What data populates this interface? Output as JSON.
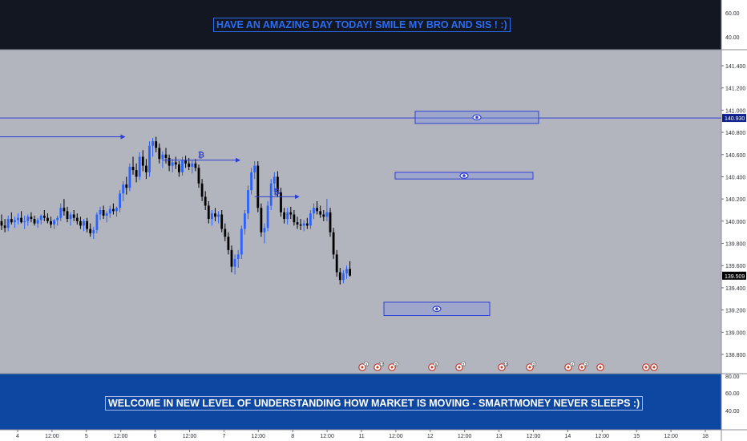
{
  "banners": {
    "top": "HAVE AN AMAZING DAY TODAY! SMILE MY BRO AND SIS ! :)",
    "bottom": "WELCOME IN NEW LEVEL OF UNDERSTANDING HOW MARKET IS MOVING - SMARTMONEY NEVER SLEEPS :)"
  },
  "colors": {
    "background": "#b2b5be",
    "top_pane": "#131722",
    "bottom_pane": "#0d47a1",
    "up_candle": "#2962ff",
    "down_candle": "#000000",
    "drawing": "#2f3fd6",
    "top_text": "#2a6cf6",
    "price_tag": "#0b1f8f"
  },
  "price_axis": {
    "ticks": [
      "141.400",
      "141.200",
      "141.000",
      "140.800",
      "140.600",
      "140.400",
      "140.200",
      "140.000",
      "139.800",
      "139.600",
      "139.400",
      "139.200",
      "139.000",
      "138.800"
    ],
    "price_tags": [
      "140.930",
      "139.509"
    ]
  },
  "top_pane_axis": [
    "60.00",
    "40.00"
  ],
  "bottom_pane_axis": [
    "80.00",
    "60.00",
    "40.00"
  ],
  "time_axis": [
    "4",
    "12:00",
    "5",
    "12:00",
    "6",
    "12:00",
    "7",
    "12:00",
    "8",
    "12:00",
    "11",
    "12:00",
    "12",
    "12:00",
    "13",
    "12:00",
    "14",
    "12:00",
    "15",
    "12:00",
    "18"
  ],
  "annotations": {
    "bitcoin_symbol": "₿",
    "zones": [
      "eye-zone-upper",
      "eye-zone-middle",
      "eye-zone-lower"
    ],
    "event_badges": [
      "2",
      "17",
      "2",
      "5",
      "2",
      "10",
      "2",
      "4",
      "3"
    ]
  },
  "chart_data": {
    "type": "candlestick",
    "price_unit": "USDJPY-style quote",
    "y_range": [
      138.7,
      141.5
    ],
    "horizontal_line": 140.93,
    "last_price": 139.509,
    "candles": [
      [
        140.0,
        140.06,
        139.92,
        139.96
      ],
      [
        139.96,
        140.02,
        139.9,
        139.94
      ],
      [
        139.94,
        140.05,
        139.91,
        140.02
      ],
      [
        140.02,
        140.08,
        139.97,
        139.99
      ],
      [
        139.99,
        140.04,
        139.94,
        140.01
      ],
      [
        140.01,
        140.07,
        139.97,
        140.03
      ],
      [
        140.03,
        140.09,
        139.98,
        139.99
      ],
      [
        139.99,
        140.05,
        139.93,
        140.0
      ],
      [
        140.0,
        140.06,
        139.96,
        140.04
      ],
      [
        140.04,
        140.08,
        139.99,
        140.02
      ],
      [
        140.02,
        140.05,
        139.96,
        139.98
      ],
      [
        139.98,
        140.03,
        139.94,
        140.01
      ],
      [
        140.01,
        140.06,
        139.97,
        140.05
      ],
      [
        140.05,
        140.1,
        140.0,
        140.03
      ],
      [
        140.03,
        140.07,
        139.98,
        140.0
      ],
      [
        140.0,
        140.04,
        139.94,
        139.97
      ],
      [
        139.97,
        140.02,
        139.93,
        140.01
      ],
      [
        140.01,
        140.05,
        139.96,
        140.03
      ],
      [
        140.03,
        140.16,
        140.0,
        140.12
      ],
      [
        140.12,
        140.2,
        140.05,
        140.09
      ],
      [
        140.09,
        140.13,
        139.99,
        140.02
      ],
      [
        140.02,
        140.08,
        139.96,
        140.06
      ],
      [
        140.06,
        140.1,
        140.0,
        140.03
      ],
      [
        140.03,
        140.07,
        139.97,
        140.0
      ],
      [
        140.0,
        140.04,
        139.93,
        139.96
      ],
      [
        139.96,
        140.02,
        139.91,
        140.0
      ],
      [
        140.0,
        140.03,
        139.9,
        139.93
      ],
      [
        139.93,
        139.98,
        139.86,
        139.89
      ],
      [
        139.89,
        139.95,
        139.84,
        139.92
      ],
      [
        139.92,
        140.08,
        139.89,
        140.06
      ],
      [
        140.06,
        140.13,
        140.01,
        140.1
      ],
      [
        140.1,
        140.14,
        140.02,
        140.05
      ],
      [
        140.05,
        140.09,
        139.99,
        140.07
      ],
      [
        140.07,
        140.14,
        140.03,
        140.11
      ],
      [
        140.11,
        140.16,
        140.06,
        140.09
      ],
      [
        140.09,
        140.13,
        140.04,
        140.12
      ],
      [
        140.12,
        140.28,
        140.08,
        140.25
      ],
      [
        140.25,
        140.36,
        140.18,
        140.33
      ],
      [
        140.33,
        140.4,
        140.24,
        140.3
      ],
      [
        140.3,
        140.52,
        140.27,
        140.49
      ],
      [
        140.49,
        140.58,
        140.42,
        140.46
      ],
      [
        140.46,
        140.52,
        140.35,
        140.4
      ],
      [
        140.4,
        140.62,
        140.37,
        140.58
      ],
      [
        140.58,
        140.64,
        140.45,
        140.5
      ],
      [
        140.5,
        140.56,
        140.38,
        140.44
      ],
      [
        140.44,
        140.72,
        140.4,
        140.68
      ],
      [
        140.68,
        140.75,
        140.58,
        140.72
      ],
      [
        140.72,
        140.76,
        140.62,
        140.66
      ],
      [
        140.66,
        140.7,
        140.52,
        140.56
      ],
      [
        140.56,
        140.63,
        140.48,
        140.6
      ],
      [
        140.6,
        140.66,
        140.52,
        140.57
      ],
      [
        140.57,
        140.6,
        140.45,
        140.5
      ],
      [
        140.5,
        140.56,
        140.44,
        140.53
      ],
      [
        140.53,
        140.58,
        140.47,
        140.51
      ],
      [
        140.51,
        140.54,
        140.4,
        140.44
      ],
      [
        140.44,
        140.58,
        140.41,
        140.55
      ],
      [
        140.55,
        140.59,
        140.48,
        140.52
      ],
      [
        140.52,
        140.57,
        140.46,
        140.49
      ],
      [
        140.49,
        140.55,
        140.43,
        140.52
      ],
      [
        140.52,
        140.56,
        140.45,
        140.48
      ],
      [
        140.48,
        140.51,
        140.3,
        140.34
      ],
      [
        140.34,
        140.38,
        140.18,
        140.22
      ],
      [
        140.22,
        140.27,
        140.1,
        140.14
      ],
      [
        140.14,
        140.18,
        139.98,
        140.02
      ],
      [
        140.02,
        140.1,
        139.96,
        140.07
      ],
      [
        140.07,
        140.12,
        140.0,
        140.04
      ],
      [
        140.04,
        140.09,
        139.98,
        140.06
      ],
      [
        140.06,
        140.1,
        139.9,
        139.93
      ],
      [
        139.93,
        139.98,
        139.82,
        139.86
      ],
      [
        139.86,
        139.9,
        139.7,
        139.74
      ],
      [
        139.74,
        139.78,
        139.54,
        139.59
      ],
      [
        139.59,
        139.7,
        139.52,
        139.66
      ],
      [
        139.66,
        139.74,
        139.58,
        139.7
      ],
      [
        139.7,
        139.96,
        139.66,
        139.93
      ],
      [
        139.93,
        140.1,
        139.88,
        140.07
      ],
      [
        140.07,
        140.32,
        140.02,
        140.28
      ],
      [
        140.28,
        140.48,
        140.24,
        140.44
      ],
      [
        140.44,
        140.54,
        140.38,
        140.5
      ],
      [
        140.5,
        140.54,
        140.08,
        140.12
      ],
      [
        140.12,
        140.16,
        139.86,
        139.9
      ],
      [
        139.9,
        139.98,
        139.8,
        139.94
      ],
      [
        139.94,
        140.18,
        139.91,
        140.14
      ],
      [
        140.14,
        140.38,
        140.1,
        140.34
      ],
      [
        140.34,
        140.44,
        140.26,
        140.4
      ],
      [
        140.4,
        140.45,
        140.22,
        140.26
      ],
      [
        140.26,
        140.3,
        140.04,
        140.08
      ],
      [
        140.08,
        140.12,
        139.98,
        140.02
      ],
      [
        140.02,
        140.12,
        139.97,
        140.08
      ],
      [
        140.08,
        140.13,
        140.02,
        140.06
      ],
      [
        140.06,
        140.1,
        139.96,
        139.99
      ],
      [
        139.99,
        140.04,
        139.93,
        139.97
      ],
      [
        139.97,
        140.02,
        139.92,
        139.96
      ],
      [
        139.96,
        140.01,
        139.91,
        139.98
      ],
      [
        139.98,
        140.03,
        139.93,
        139.96
      ],
      [
        139.96,
        140.1,
        139.93,
        140.07
      ],
      [
        140.07,
        140.16,
        140.02,
        140.12
      ],
      [
        140.12,
        140.18,
        140.06,
        140.09
      ],
      [
        140.09,
        140.14,
        140.03,
        140.06
      ],
      [
        140.06,
        140.1,
        140.0,
        140.04
      ],
      [
        140.04,
        140.2,
        140.0,
        140.08
      ],
      [
        140.08,
        140.12,
        139.86,
        139.9
      ],
      [
        139.9,
        139.94,
        139.66,
        139.7
      ],
      [
        139.7,
        139.74,
        139.5,
        139.54
      ],
      [
        139.54,
        139.58,
        139.43,
        139.47
      ],
      [
        139.47,
        139.56,
        139.44,
        139.53
      ],
      [
        139.53,
        139.6,
        139.48,
        139.57
      ],
      [
        139.57,
        139.64,
        139.5,
        139.51
      ]
    ],
    "drawings": [
      {
        "kind": "arrow-line",
        "from_index": 0,
        "to_index": 35,
        "price": 140.76
      },
      {
        "kind": "arrow-line",
        "from_index": 49,
        "to_index": 70,
        "price": 140.55,
        "label": "₿"
      },
      {
        "kind": "arrow-line",
        "from_index": 77,
        "to_index": 88,
        "price": 140.22,
        "label": "₿"
      }
    ],
    "zones": [
      {
        "name": "eye-zone-upper",
        "price_top": 140.99,
        "price_bottom": 140.88
      },
      {
        "name": "eye-zone-middle",
        "price_top": 140.44,
        "price_bottom": 140.38
      },
      {
        "name": "eye-zone-lower",
        "price_top": 139.27,
        "price_bottom": 139.15
      }
    ]
  }
}
